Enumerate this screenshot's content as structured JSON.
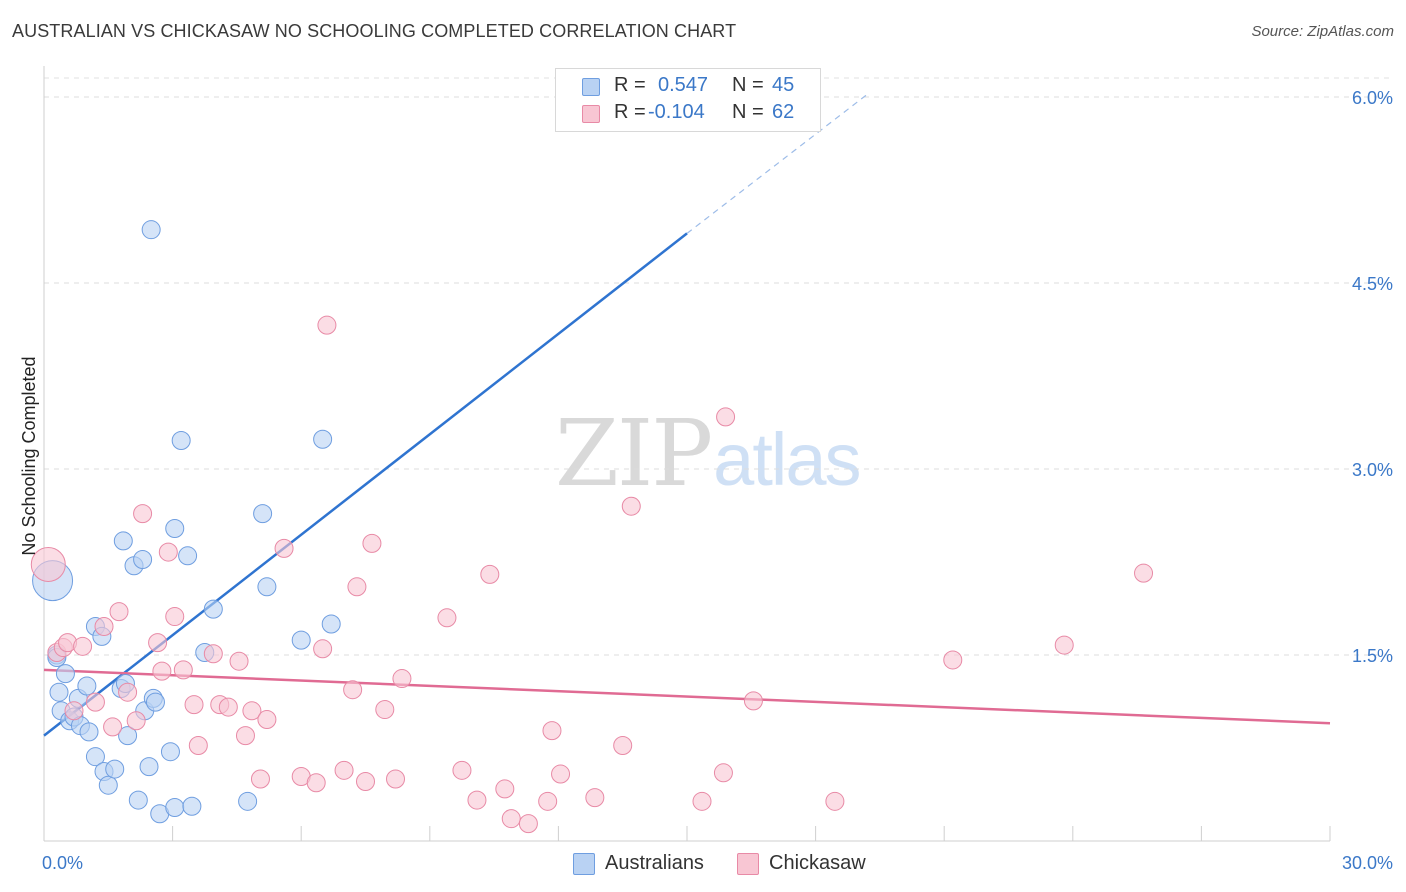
{
  "header": {
    "title": "AUSTRALIAN VS CHICKASAW NO SCHOOLING COMPLETED CORRELATION CHART",
    "source": "Source: ZipAtlas.com"
  },
  "legend": {
    "rows": [
      {
        "r_label": "R =",
        "r_value": "0.547",
        "n_label": "N =",
        "n_value": "45"
      },
      {
        "r_label": "R =",
        "r_value": "-0.104",
        "n_label": "N =",
        "n_value": "62"
      }
    ]
  },
  "bottom_legend": [
    "Australians",
    "Chickasaw"
  ],
  "watermark": {
    "zip": "ZIP",
    "atlas": "atlas"
  },
  "colors": {
    "blue_fill": "#b9d2f3",
    "blue_stroke": "#6f9ee0",
    "blue_line": "#2f74d0",
    "pink_fill": "#f8c6d3",
    "pink_stroke": "#e88aa6",
    "pink_line": "#e06b93",
    "tick_label": "#3b78c8"
  },
  "chart_data": {
    "type": "scatter",
    "title": "AUSTRALIAN VS CHICKASAW NO SCHOOLING COMPLETED CORRELATION CHART",
    "xlabel": "",
    "ylabel": "No Schooling Completed",
    "xlim": [
      0,
      30
    ],
    "ylim": [
      0,
      6.2
    ],
    "x_tick_labels": [
      {
        "value": 0,
        "label": "0.0%"
      },
      {
        "value": 30,
        "label": "30.0%"
      }
    ],
    "y_tick_labels": [
      {
        "value": 1.5,
        "label": "1.5%"
      },
      {
        "value": 3.0,
        "label": "3.0%"
      },
      {
        "value": 4.5,
        "label": "4.5%"
      },
      {
        "value": 6.0,
        "label": "6.0%"
      }
    ],
    "series": [
      {
        "name": "Australians",
        "r": 0.547,
        "n": 45,
        "trend": {
          "x0": 0,
          "y0": 0.85,
          "x1": 15,
          "y1": 4.9,
          "dash_to_x": 19.2,
          "dash_to_y": 6.02
        },
        "points": [
          [
            0.2,
            2.1
          ],
          [
            0.3,
            1.5
          ],
          [
            0.3,
            1.48
          ],
          [
            0.35,
            1.2
          ],
          [
            0.4,
            1.05
          ],
          [
            0.5,
            1.35
          ],
          [
            0.6,
            0.97
          ],
          [
            0.7,
            1.0
          ],
          [
            0.8,
            1.15
          ],
          [
            0.85,
            0.93
          ],
          [
            1.0,
            1.25
          ],
          [
            1.05,
            0.88
          ],
          [
            1.2,
            0.68
          ],
          [
            1.2,
            1.73
          ],
          [
            1.35,
            1.65
          ],
          [
            1.4,
            0.56
          ],
          [
            1.5,
            0.45
          ],
          [
            1.65,
            0.58
          ],
          [
            1.8,
            1.23
          ],
          [
            1.85,
            2.42
          ],
          [
            1.9,
            1.27
          ],
          [
            1.95,
            0.85
          ],
          [
            2.1,
            2.22
          ],
          [
            2.2,
            0.33
          ],
          [
            2.3,
            2.27
          ],
          [
            2.35,
            1.05
          ],
          [
            2.45,
            0.6
          ],
          [
            2.5,
            4.93
          ],
          [
            2.55,
            1.15
          ],
          [
            2.7,
            0.22
          ],
          [
            2.95,
            0.72
          ],
          [
            3.05,
            0.27
          ],
          [
            3.05,
            2.52
          ],
          [
            3.2,
            3.23
          ],
          [
            3.35,
            2.3
          ],
          [
            3.45,
            0.28
          ],
          [
            3.75,
            1.52
          ],
          [
            3.95,
            1.87
          ],
          [
            4.75,
            0.32
          ],
          [
            5.1,
            2.64
          ],
          [
            5.2,
            2.05
          ],
          [
            6.0,
            1.62
          ],
          [
            6.5,
            3.24
          ],
          [
            6.7,
            1.75
          ],
          [
            2.6,
            1.12
          ]
        ]
      },
      {
        "name": "Chickasaw",
        "r": -0.104,
        "n": 62,
        "trend": {
          "x0": 0,
          "y0": 1.38,
          "x1": 30,
          "y1": 0.95
        },
        "points": [
          [
            0.1,
            2.23
          ],
          [
            0.3,
            1.52
          ],
          [
            0.45,
            1.56
          ],
          [
            0.55,
            1.6
          ],
          [
            0.7,
            1.05
          ],
          [
            0.9,
            1.57
          ],
          [
            1.2,
            1.12
          ],
          [
            1.4,
            1.73
          ],
          [
            1.6,
            0.92
          ],
          [
            1.75,
            1.85
          ],
          [
            1.95,
            1.2
          ],
          [
            2.15,
            0.97
          ],
          [
            2.3,
            2.64
          ],
          [
            2.65,
            1.6
          ],
          [
            2.75,
            1.37
          ],
          [
            2.9,
            2.33
          ],
          [
            3.05,
            1.81
          ],
          [
            3.25,
            1.38
          ],
          [
            3.5,
            1.1
          ],
          [
            3.6,
            0.77
          ],
          [
            3.95,
            1.51
          ],
          [
            4.1,
            1.1
          ],
          [
            4.3,
            1.08
          ],
          [
            4.55,
            1.45
          ],
          [
            4.7,
            0.85
          ],
          [
            4.85,
            1.05
          ],
          [
            5.05,
            0.5
          ],
          [
            5.2,
            0.98
          ],
          [
            5.6,
            2.36
          ],
          [
            6.0,
            0.52
          ],
          [
            6.35,
            0.47
          ],
          [
            6.5,
            1.55
          ],
          [
            6.6,
            4.16
          ],
          [
            7.0,
            0.57
          ],
          [
            7.2,
            1.22
          ],
          [
            7.3,
            2.05
          ],
          [
            7.5,
            0.48
          ],
          [
            7.65,
            2.4
          ],
          [
            7.95,
            1.06
          ],
          [
            8.2,
            0.5
          ],
          [
            8.35,
            1.31
          ],
          [
            9.4,
            1.8
          ],
          [
            9.75,
            0.57
          ],
          [
            10.1,
            0.33
          ],
          [
            10.4,
            2.15
          ],
          [
            10.75,
            0.42
          ],
          [
            10.9,
            0.18
          ],
          [
            11.3,
            0.14
          ],
          [
            11.75,
            0.32
          ],
          [
            11.85,
            0.89
          ],
          [
            12.05,
            0.54
          ],
          [
            12.85,
            0.35
          ],
          [
            13.5,
            0.77
          ],
          [
            13.7,
            2.7
          ],
          [
            15.35,
            0.32
          ],
          [
            15.85,
            0.55
          ],
          [
            15.9,
            3.42
          ],
          [
            16.55,
            1.13
          ],
          [
            18.45,
            0.32
          ],
          [
            21.2,
            1.46
          ],
          [
            23.8,
            1.58
          ],
          [
            25.65,
            2.16
          ]
        ]
      }
    ]
  }
}
